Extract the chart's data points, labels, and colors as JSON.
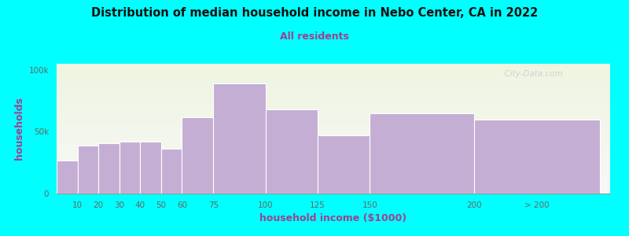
{
  "title": "Distribution of median household income in Nebo Center, CA in 2022",
  "subtitle": "All residents",
  "xlabel": "household income ($1000)",
  "ylabel": "households",
  "background_color": "#00FFFF",
  "plot_bg_gradient_top": "#eef5e0",
  "plot_bg_gradient_bottom": "#f8f8f8",
  "bar_color": "#c5aed4",
  "bar_edge_color": "#ffffff",
  "title_color": "#111111",
  "subtitle_color": "#a04090",
  "axis_label_color": "#a04090",
  "tick_label_color": "#666666",
  "categories": [
    "10",
    "20",
    "30",
    "40",
    "50",
    "60",
    "75",
    "100",
    "125",
    "150",
    "200",
    "> 200"
  ],
  "bar_lefts": [
    0,
    10,
    20,
    30,
    40,
    50,
    60,
    75,
    100,
    125,
    150,
    200
  ],
  "bar_rights": [
    10,
    20,
    30,
    40,
    50,
    60,
    75,
    100,
    125,
    150,
    200,
    260
  ],
  "values": [
    27000,
    39000,
    41000,
    42000,
    42000,
    36000,
    62000,
    89000,
    68000,
    47000,
    65000,
    60000
  ],
  "xtick_positions": [
    10,
    20,
    30,
    40,
    50,
    60,
    75,
    100,
    125,
    150,
    200,
    230
  ],
  "xtick_labels": [
    "10",
    "20",
    "30",
    "40",
    "50",
    "60",
    "75",
    "100",
    "125",
    "150",
    "200",
    "> 200"
  ],
  "yticks": [
    0,
    50000,
    100000
  ],
  "ytick_labels": [
    "0",
    "50k",
    "100k"
  ],
  "ylim": [
    0,
    105000
  ],
  "xlim": [
    0,
    265
  ],
  "figsize": [
    8.0,
    3.0
  ],
  "dpi": 100
}
